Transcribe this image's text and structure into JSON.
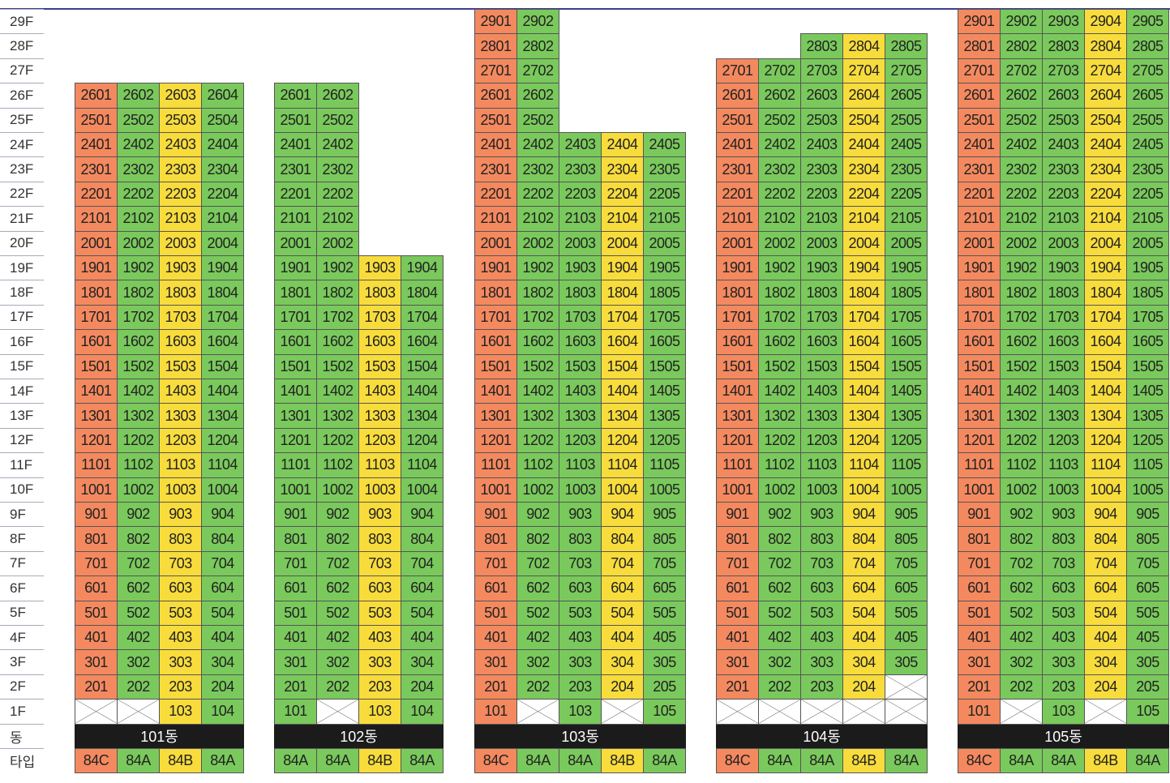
{
  "floor_labels": [
    "29F",
    "28F",
    "27F",
    "26F",
    "25F",
    "24F",
    "23F",
    "22F",
    "21F",
    "20F",
    "19F",
    "18F",
    "17F",
    "16F",
    "15F",
    "14F",
    "13F",
    "12F",
    "11F",
    "10F",
    "9F",
    "8F",
    "7F",
    "6F",
    "5F",
    "4F",
    "3F",
    "2F",
    "1F"
  ],
  "row_label_building": "동",
  "row_label_type": "타입",
  "colors": {
    "orange": "#f4895f",
    "green": "#7ac95c",
    "yellow": "#f8dc3c",
    "empty": "#ffffff"
  },
  "buildings": [
    {
      "name": "101동",
      "lines": [
        {
          "type": "84C",
          "color": "orange",
          "top": 26,
          "empty_floors": [
            1
          ]
        },
        {
          "type": "84A",
          "color": "green",
          "top": 26,
          "empty_floors": [
            1
          ]
        },
        {
          "type": "84B",
          "color": "yellow",
          "top": 26,
          "empty_floors": []
        },
        {
          "type": "84A",
          "color": "green",
          "top": 26,
          "empty_floors": []
        }
      ]
    },
    {
      "name": "102동",
      "lines": [
        {
          "type": "84A",
          "color": "green",
          "top": 26,
          "empty_floors": []
        },
        {
          "type": "84A",
          "color": "green",
          "top": 26,
          "empty_floors": [
            1
          ]
        },
        {
          "type": "84B",
          "color": "yellow",
          "top": 19,
          "empty_floors": []
        },
        {
          "type": "84A",
          "color": "green",
          "top": 19,
          "empty_floors": []
        }
      ]
    },
    {
      "name": "103동",
      "lines": [
        {
          "type": "84C",
          "color": "orange",
          "top": 29,
          "empty_floors": []
        },
        {
          "type": "84A",
          "color": "green",
          "top": 29,
          "empty_floors": [
            1
          ]
        },
        {
          "type": "84A",
          "color": "green",
          "top": 24,
          "empty_floors": []
        },
        {
          "type": "84B",
          "color": "yellow",
          "top": 24,
          "empty_floors": [
            1
          ]
        },
        {
          "type": "84A",
          "color": "green",
          "top": 24,
          "empty_floors": []
        }
      ]
    },
    {
      "name": "104동",
      "lines": [
        {
          "type": "84C",
          "color": "orange",
          "top": 27,
          "empty_floors": [
            1
          ]
        },
        {
          "type": "84A",
          "color": "green",
          "top": 27,
          "empty_floors": [
            1
          ]
        },
        {
          "type": "84A",
          "color": "green",
          "top": 28,
          "empty_floors": [
            1
          ]
        },
        {
          "type": "84B",
          "color": "yellow",
          "top": 28,
          "empty_floors": [
            1
          ]
        },
        {
          "type": "84A",
          "color": "green",
          "top": 28,
          "empty_floors": [
            1,
            2
          ]
        }
      ]
    },
    {
      "name": "105동",
      "lines": [
        {
          "type": "84C",
          "color": "orange",
          "top": 29,
          "empty_floors": []
        },
        {
          "type": "84A",
          "color": "green",
          "top": 29,
          "empty_floors": [
            1
          ]
        },
        {
          "type": "84A",
          "color": "green",
          "top": 29,
          "empty_floors": []
        },
        {
          "type": "84B",
          "color": "yellow",
          "top": 29,
          "empty_floors": [
            1
          ]
        },
        {
          "type": "84A",
          "color": "green",
          "top": 29,
          "empty_floors": []
        }
      ]
    }
  ]
}
